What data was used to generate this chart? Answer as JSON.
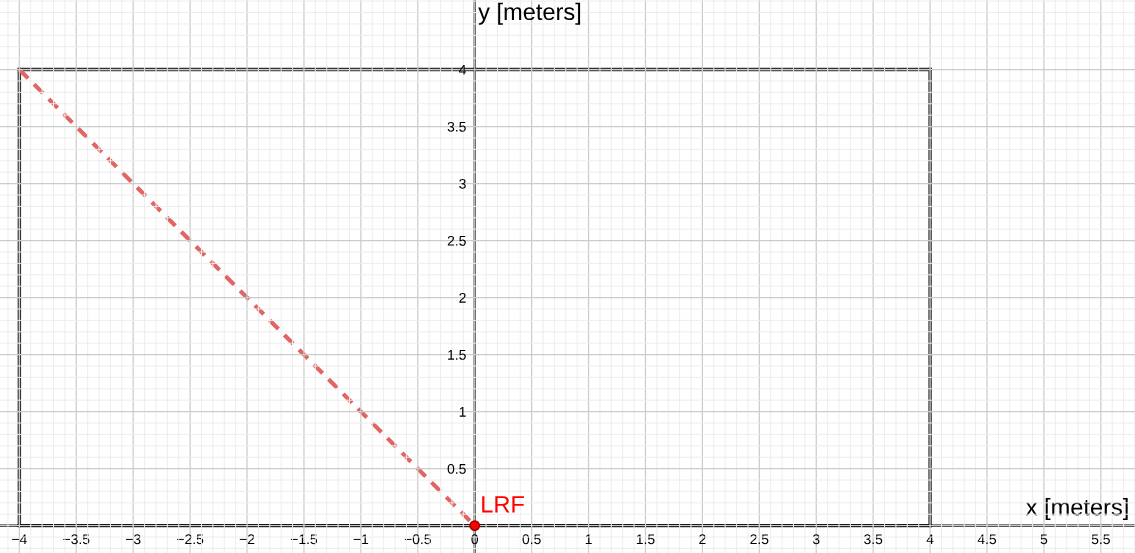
{
  "chart_data": {
    "type": "line",
    "xlabel": "x [meters]",
    "ylabel": "y [meters]",
    "xlim": [
      -4.17,
      5.8
    ],
    "ylim": [
      -0.24,
      4.61
    ],
    "xticks": [
      {
        "value": -4,
        "label": "−4"
      },
      {
        "value": -3.5,
        "label": "−3.5"
      },
      {
        "value": -3,
        "label": "−3"
      },
      {
        "value": -2.5,
        "label": "−2.5"
      },
      {
        "value": -2,
        "label": "−2"
      },
      {
        "value": -1.5,
        "label": "−1.5"
      },
      {
        "value": -1,
        "label": "−1"
      },
      {
        "value": -0.5,
        "label": "−0.5"
      },
      0,
      0.5,
      1,
      1.5,
      2,
      2.5,
      3,
      3.5,
      4,
      4.5,
      5,
      5.5
    ],
    "yticks": [
      0.5,
      1,
      1.5,
      2,
      2.5,
      3,
      3.5,
      4
    ],
    "grid": true,
    "series": [
      {
        "color": "#333333",
        "line_style": "solid",
        "marker": "none",
        "x": [
          -4,
          4
        ],
        "values": [
          0,
          0
        ]
      },
      {
        "color": "#333333",
        "line_style": "solid",
        "marker": "none",
        "x": [
          4,
          4
        ],
        "values": [
          0,
          4
        ]
      },
      {
        "color": "#333333",
        "line_style": "solid",
        "marker": "none",
        "x": [
          -4,
          4
        ],
        "values": [
          4,
          4
        ]
      },
      {
        "color": "#333333",
        "line_style": "solid",
        "marker": "none",
        "x": [
          -4,
          -4
        ],
        "values": [
          0,
          4
        ]
      },
      {
        "color": "#e06666",
        "line_style": "dashed",
        "marker": "none",
        "x": [
          -4,
          0
        ],
        "values": [
          4,
          0
        ]
      },
      {
        "type": "scatter",
        "name": "LRF",
        "color": "#ff0000",
        "marker": "circle",
        "x": [
          0
        ],
        "values": [
          0
        ]
      }
    ]
  }
}
